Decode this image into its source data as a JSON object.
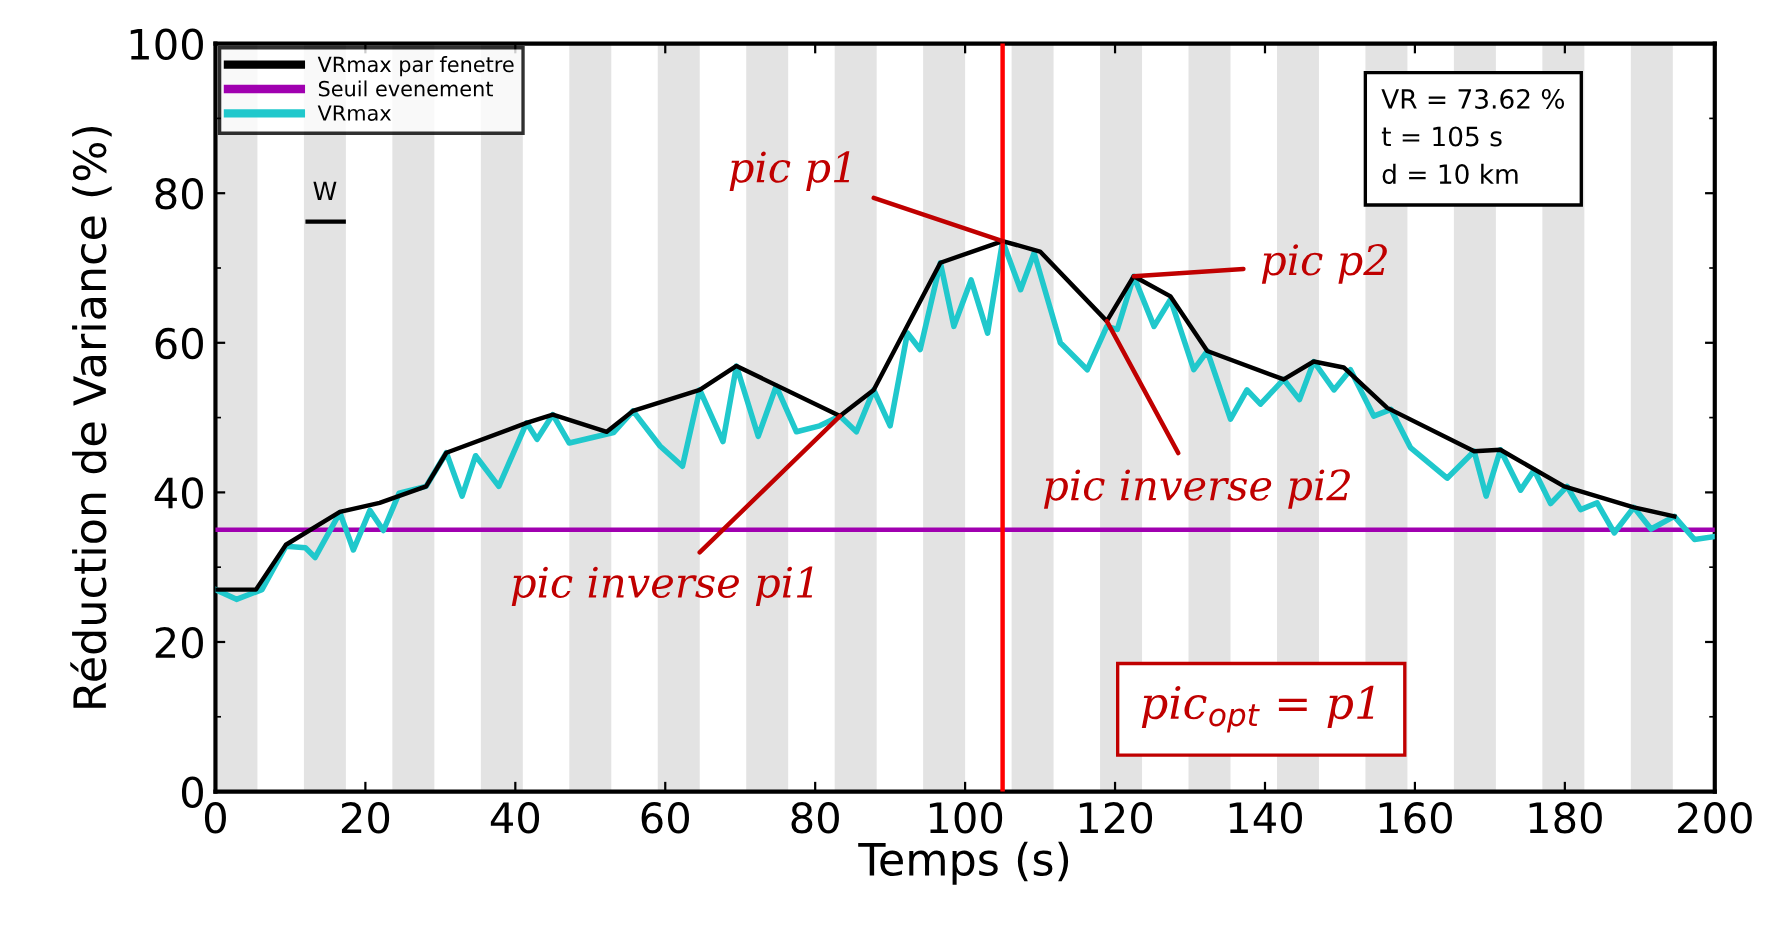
{
  "chart_data": {
    "type": "line",
    "xlabel": "Temps (s)",
    "ylabel": "Réduction de Variance (%)",
    "xlim": [
      0,
      200
    ],
    "ylim": [
      0,
      100
    ],
    "xticks": [
      0,
      20,
      40,
      60,
      80,
      100,
      120,
      140,
      160,
      180,
      200
    ],
    "yticks": [
      0,
      20,
      40,
      60,
      80,
      100
    ],
    "grid": false,
    "legend": "top left",
    "line_style": "solid",
    "marker": "none",
    "series": [
      {
        "name": "VRmax par fenetre",
        "color": "#000000",
        "x": [
          0,
          5.4,
          9.4,
          16.6,
          21.9,
          28.1,
          30.8,
          41.5,
          45,
          52.2,
          55.7,
          64.6,
          69.5,
          83.3,
          87.8,
          96.7,
          105,
          110,
          118.9,
          122.5,
          127.4,
          132.3,
          142.5,
          146.5,
          150.5,
          156.3,
          167.9,
          171.4,
          179.9,
          189.2,
          194.6
        ],
        "values": [
          27,
          27,
          33,
          37.4,
          38.6,
          40.8,
          45.3,
          49.3,
          50.4,
          48.1,
          50.9,
          53.7,
          56.9,
          50.2,
          53.7,
          70.7,
          73.6,
          72.2,
          62.9,
          68.9,
          66.2,
          58.9,
          55.1,
          57.5,
          56.7,
          51.3,
          45.5,
          45.7,
          40.8,
          38,
          36.8
        ]
      },
      {
        "name": "Seuil evenement",
        "color": "#a000b0",
        "x": [
          0,
          200
        ],
        "values": [
          35,
          35
        ]
      },
      {
        "name": "VRmax",
        "color": "#20c8cc",
        "x": [
          0,
          2.8,
          6.2,
          9.4,
          12,
          13.3,
          16.6,
          18.4,
          20.6,
          22.4,
          24.5,
          28.1,
          30.8,
          32.9,
          34.7,
          37.8,
          41.5,
          42.9,
          45,
          47.2,
          53.1,
          55.7,
          59.3,
          62.3,
          64.6,
          67.7,
          69.5,
          72.4,
          74.8,
          77.5,
          80.6,
          83.3,
          85.5,
          87.8,
          90,
          92.3,
          94,
          96.7,
          98.5,
          100.8,
          103,
          105,
          107.4,
          109.2,
          112.7,
          116.3,
          118.9,
          120.3,
          122.5,
          125.2,
          127.4,
          130.5,
          132.3,
          135.4,
          137.6,
          139.4,
          142.5,
          144.6,
          146.5,
          149.2,
          151.4,
          154.5,
          156.8,
          159.4,
          164.3,
          167.9,
          169.5,
          171.4,
          174.1,
          175.9,
          178.1,
          180.3,
          182.1,
          184.3,
          186.6,
          189.2,
          191.5,
          194.6,
          197.3,
          200
        ],
        "values": [
          27,
          25.7,
          27,
          32.8,
          32.6,
          31.3,
          37.3,
          32.3,
          37.6,
          34.9,
          39.9,
          40.8,
          45.3,
          39.5,
          44.9,
          40.8,
          49.3,
          47.1,
          50.4,
          46.6,
          48,
          50.9,
          46.2,
          43.5,
          53.7,
          46.8,
          56.9,
          47.5,
          54.2,
          48.1,
          48.9,
          50.2,
          48.1,
          53.7,
          48.9,
          61.3,
          59.1,
          70.7,
          62.2,
          68.4,
          61.3,
          73.6,
          67.1,
          72,
          60,
          56.4,
          62.2,
          61.8,
          68.9,
          62.2,
          65.8,
          56.4,
          58.9,
          49.8,
          53.7,
          51.8,
          55.1,
          52.4,
          57.5,
          53.7,
          56.4,
          50.2,
          51.1,
          46,
          41.9,
          45.5,
          39.5,
          45.7,
          40.3,
          43,
          38.5,
          40.8,
          37.7,
          38.6,
          34.6,
          38,
          35.1,
          36.8,
          33.7,
          34.1
        ]
      }
    ],
    "ref_lines": [
      {
        "axis": "x",
        "value": 105,
        "color": "#ff0000"
      }
    ],
    "bands": [
      {
        "axis": "x",
        "from": 0,
        "to": 5.6,
        "color": "#e3e3e3"
      },
      {
        "axis": "x",
        "from": 11.8,
        "to": 17.4,
        "color": "#e3e3e3"
      },
      {
        "axis": "x",
        "from": 23.6,
        "to": 29.2,
        "color": "#e3e3e3"
      },
      {
        "axis": "x",
        "from": 35.4,
        "to": 41,
        "color": "#e3e3e3"
      },
      {
        "axis": "x",
        "from": 47.2,
        "to": 52.8,
        "color": "#e3e3e3"
      },
      {
        "axis": "x",
        "from": 59,
        "to": 64.6,
        "color": "#e3e3e3"
      },
      {
        "axis": "x",
        "from": 70.8,
        "to": 76.4,
        "color": "#e3e3e3"
      },
      {
        "axis": "x",
        "from": 82.6,
        "to": 88.2,
        "color": "#e3e3e3"
      },
      {
        "axis": "x",
        "from": 94.4,
        "to": 100,
        "color": "#e3e3e3"
      },
      {
        "axis": "x",
        "from": 106.2,
        "to": 111.8,
        "color": "#e3e3e3"
      },
      {
        "axis": "x",
        "from": 118,
        "to": 123.6,
        "color": "#e3e3e3"
      },
      {
        "axis": "x",
        "from": 129.8,
        "to": 135.4,
        "color": "#e3e3e3"
      },
      {
        "axis": "x",
        "from": 141.6,
        "to": 147.2,
        "color": "#e3e3e3"
      },
      {
        "axis": "x",
        "from": 153.4,
        "to": 159,
        "color": "#e3e3e3"
      },
      {
        "axis": "x",
        "from": 165.2,
        "to": 170.8,
        "color": "#e3e3e3"
      },
      {
        "axis": "x",
        "from": 177,
        "to": 182.6,
        "color": "#e3e3e3"
      },
      {
        "axis": "x",
        "from": 188.8,
        "to": 194.4,
        "color": "#e3e3e3"
      }
    ],
    "annotations": [
      "W",
      "VR = 73.62 %\nt = 105 s\nd = 10 km",
      {
        "text": "pic p1",
        "x": 105,
        "y": 73.6
      },
      {
        "text": "pic p2",
        "x": 122.5,
        "y": 68.9
      },
      {
        "text": "pic inverse pi1",
        "x": 83.3,
        "y": 50.2
      },
      {
        "text": "pic inverse pi2",
        "x": 118.9,
        "y": 62.9
      },
      "pic$_{opt}$ = p1"
    ]
  }
}
